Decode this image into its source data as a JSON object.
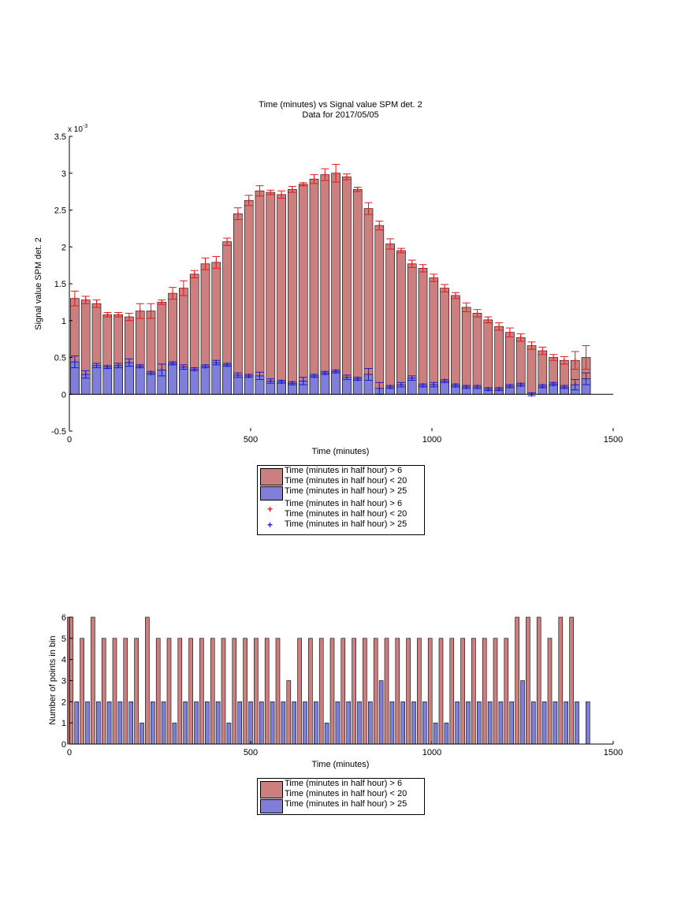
{
  "colors": {
    "red_fill": "#cc7f7f",
    "blue_fill": "#7f7fd9",
    "red_err": "#e31a1c",
    "blue_err": "#1a1ad9",
    "axis": "#000000"
  },
  "legend_entries": [
    "Time (minutes in half hour) > 6",
    "Time (minutes in half hour) < 20",
    "Time (minutes in half hour) > 25",
    "Time (minutes in half hour) > 6",
    "Time (minutes in half hour) < 20",
    "Time (minutes in half hour) > 25"
  ],
  "legend2_entries": [
    "Time (minutes in half hour) > 6",
    "Time (minutes in half hour) < 20",
    "Time (minutes in half hour) > 25"
  ],
  "chart_data": [
    {
      "type": "bar",
      "title": "Time (minutes) vs Signal value SPM det. 2",
      "subtitle": "Data for 2017/05/05",
      "xlabel": "Time (minutes)",
      "ylabel": "Signal value SPM det. 2",
      "exponent_label": "x 10",
      "exponent_power": "-3",
      "xlim": [
        0,
        1500
      ],
      "ylim": [
        -0.5,
        3.5
      ],
      "xticks": [
        "0",
        "500",
        "1000",
        "1500"
      ],
      "yticks": [
        "-0.5",
        "0",
        "0.5",
        "1",
        "1.5",
        "2",
        "2.5",
        "3",
        "3.5"
      ],
      "grid": false,
      "legend_position": "below",
      "x": [
        15,
        45,
        75,
        105,
        135,
        165,
        195,
        225,
        255,
        285,
        315,
        345,
        375,
        405,
        435,
        465,
        495,
        525,
        555,
        585,
        615,
        645,
        675,
        705,
        735,
        765,
        795,
        825,
        855,
        885,
        915,
        945,
        975,
        1005,
        1035,
        1065,
        1095,
        1125,
        1155,
        1185,
        1215,
        1245,
        1275,
        1305,
        1335,
        1365,
        1395,
        1425
      ],
      "series": [
        {
          "name": "Time (minutes in half hour) > 6\nTime (minutes in half hour) < 20",
          "values": [
            1.3,
            1.28,
            1.23,
            1.08,
            1.08,
            1.05,
            1.13,
            1.13,
            1.25,
            1.37,
            1.44,
            1.63,
            1.77,
            1.79,
            2.07,
            2.45,
            2.63,
            2.76,
            2.74,
            2.71,
            2.78,
            2.85,
            2.92,
            2.98,
            3.0,
            2.95,
            2.78,
            2.52,
            2.29,
            2.04,
            1.95,
            1.77,
            1.71,
            1.58,
            1.44,
            1.34,
            1.18,
            1.1,
            1.01,
            0.92,
            0.84,
            0.77,
            0.66,
            0.59,
            0.5,
            0.46,
            0.46,
            0.5
          ],
          "errors": [
            0.1,
            0.05,
            0.05,
            0.03,
            0.03,
            0.05,
            0.1,
            0.1,
            0.03,
            0.08,
            0.1,
            0.05,
            0.08,
            0.08,
            0.05,
            0.08,
            0.07,
            0.07,
            0.03,
            0.05,
            0.04,
            0.02,
            0.06,
            0.08,
            0.12,
            0.04,
            0.03,
            0.08,
            0.06,
            0.07,
            0.03,
            0.05,
            0.05,
            0.05,
            0.05,
            0.04,
            0.06,
            0.05,
            0.04,
            0.05,
            0.06,
            0.05,
            0.05,
            0.05,
            0.04,
            0.05,
            0.12,
            0.16
          ]
        },
        {
          "name": "Time (minutes in half hour) > 25",
          "values": [
            0.44,
            0.27,
            0.39,
            0.37,
            0.39,
            0.43,
            0.38,
            0.29,
            0.33,
            0.42,
            0.37,
            0.34,
            0.38,
            0.43,
            0.4,
            0.26,
            0.25,
            0.25,
            0.18,
            0.17,
            0.15,
            0.18,
            0.25,
            0.29,
            0.31,
            0.23,
            0.21,
            0.27,
            0.08,
            0.1,
            0.13,
            0.22,
            0.12,
            0.13,
            0.18,
            0.12,
            0.1,
            0.1,
            0.07,
            0.07,
            0.11,
            0.13,
            0.0,
            0.11,
            0.14,
            0.1,
            0.13,
            0.21
          ],
          "errors": [
            0.08,
            0.05,
            0.03,
            0.02,
            0.03,
            0.05,
            0.02,
            0.02,
            0.08,
            0.02,
            0.03,
            0.02,
            0.02,
            0.03,
            0.02,
            0.03,
            0.02,
            0.05,
            0.03,
            0.02,
            0.02,
            0.05,
            0.02,
            0.02,
            0.02,
            0.03,
            0.02,
            0.08,
            0.08,
            0.02,
            0.03,
            0.03,
            0.02,
            0.03,
            0.02,
            0.02,
            0.02,
            0.02,
            0.02,
            0.02,
            0.02,
            0.02,
            0.02,
            0.02,
            0.02,
            0.02,
            0.07,
            0.08
          ]
        }
      ]
    },
    {
      "type": "bar",
      "xlabel": "Time (minutes)",
      "ylabel": "Number of points in bin",
      "xlim": [
        0,
        1500
      ],
      "ylim": [
        0,
        6
      ],
      "xticks": [
        "0",
        "500",
        "1000",
        "1500"
      ],
      "yticks": [
        "0",
        "1",
        "2",
        "3",
        "4",
        "5",
        "6"
      ],
      "grid": false,
      "legend_position": "below",
      "series": [
        {
          "name": "Time (minutes in half hour) > 6\nTime (minutes in half hour) < 20",
          "x": [
            0,
            5,
            35,
            65,
            95,
            125,
            155,
            185,
            215,
            245,
            275,
            305,
            335,
            365,
            395,
            425,
            455,
            485,
            515,
            545,
            575,
            605,
            635,
            665,
            695,
            725,
            755,
            785,
            815,
            845,
            875,
            905,
            935,
            965,
            995,
            1025,
            1055,
            1085,
            1115,
            1145,
            1175,
            1205,
            1235,
            1265,
            1295,
            1325,
            1355,
            1385
          ],
          "values": [
            6,
            6,
            5,
            6,
            5,
            5,
            5,
            5,
            6,
            5,
            5,
            5,
            5,
            5,
            5,
            5,
            5,
            5,
            5,
            5,
            5,
            3,
            5,
            5,
            5,
            5,
            5,
            5,
            5,
            5,
            5,
            5,
            5,
            5,
            5,
            5,
            5,
            5,
            5,
            5,
            5,
            5,
            6,
            6,
            6,
            5,
            6,
            6
          ]
        },
        {
          "name": "Time (minutes in half hour) > 25",
          "x": [
            20,
            50,
            80,
            110,
            140,
            170,
            200,
            230,
            260,
            290,
            320,
            350,
            380,
            410,
            440,
            470,
            500,
            530,
            560,
            590,
            620,
            650,
            680,
            710,
            740,
            770,
            800,
            830,
            860,
            890,
            920,
            950,
            980,
            1010,
            1040,
            1070,
            1100,
            1130,
            1160,
            1190,
            1220,
            1250,
            1280,
            1310,
            1340,
            1370,
            1400,
            1430
          ],
          "values": [
            2,
            2,
            2,
            2,
            2,
            2,
            1,
            2,
            2,
            1,
            2,
            2,
            2,
            2,
            1,
            2,
            2,
            2,
            2,
            2,
            2,
            2,
            2,
            1,
            2,
            2,
            2,
            2,
            3,
            2,
            2,
            2,
            2,
            1,
            1,
            2,
            2,
            2,
            2,
            2,
            2,
            3,
            2,
            2,
            2,
            2,
            2,
            2
          ]
        }
      ]
    }
  ]
}
